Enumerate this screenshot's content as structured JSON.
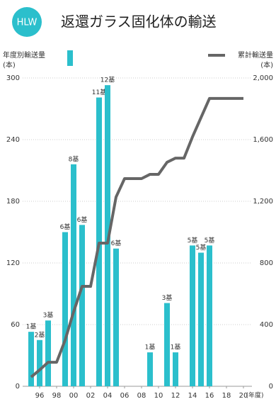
{
  "header": {
    "badge": "HLW"
  },
  "chart_data": {
    "type": "combo",
    "title": "返還ガラス固化体の輸送",
    "ylabel": "(本)",
    "y2label": "(本)",
    "xunit": "(年度)",
    "xlim": [
      1994,
      2021
    ],
    "xticks": [
      {
        "value": 1996,
        "label": "96"
      },
      {
        "value": 1998,
        "label": "98"
      },
      {
        "value": 2000,
        "label": "00"
      },
      {
        "value": 2002,
        "label": "02"
      },
      {
        "value": 2004,
        "label": "04"
      },
      {
        "value": 2006,
        "label": "06"
      },
      {
        "value": 2008,
        "label": "08"
      },
      {
        "value": 2010,
        "label": "10"
      },
      {
        "value": 2012,
        "label": "12"
      },
      {
        "value": 2014,
        "label": "14"
      },
      {
        "value": 2016,
        "label": "16"
      },
      {
        "value": 2018,
        "label": "18"
      },
      {
        "value": 2020,
        "label": "20"
      }
    ],
    "ylim": [
      0,
      300
    ],
    "yticks": [
      0,
      60,
      120,
      180,
      240,
      300
    ],
    "y2lim": [
      0,
      2000
    ],
    "y2ticks": [
      0,
      400,
      800,
      {
        "value": 1200,
        "label": "1,200"
      },
      {
        "value": 1600,
        "label": "1,600"
      },
      {
        "value": 2000,
        "label": "2,000"
      }
    ],
    "grid": true,
    "series": [
      {
        "name": "年度別輸送量",
        "type": "bar",
        "color": "#2bbfcc",
        "x": [
          1995,
          1996,
          1997,
          1999,
          2000,
          2001,
          2003,
          2004,
          2005,
          2009,
          2011,
          2012,
          2014,
          2015,
          2016
        ],
        "values": [
          53,
          45,
          64,
          150,
          216,
          157,
          281,
          293,
          134,
          33,
          81,
          33,
          137,
          130,
          137
        ],
        "value_labels": [
          "1基",
          "2基",
          "3基",
          "6基",
          "8基",
          "6基",
          "11基",
          "12基",
          "6基",
          "1基",
          "3基",
          "1基",
          "5基",
          "5基",
          "5基"
        ]
      },
      {
        "name": "累計輸送量",
        "type": "line",
        "axis": "y2",
        "color": "#666666",
        "x": [
          1995,
          1996,
          1997,
          1998,
          1999,
          2000,
          2001,
          2002,
          2003,
          2004,
          2005,
          2006,
          2007,
          2008,
          2009,
          2010,
          2011,
          2012,
          2013,
          2014,
          2015,
          2016,
          2017,
          2018,
          2019,
          2020
        ],
        "values": [
          60,
          106,
          156,
          156,
          299,
          483,
          648,
          648,
          929,
          929,
          1228,
          1347,
          1347,
          1347,
          1375,
          1375,
          1453,
          1480,
          1480,
          1618,
          1743,
          1867,
          1867,
          1867,
          1867,
          1867
        ]
      }
    ]
  }
}
